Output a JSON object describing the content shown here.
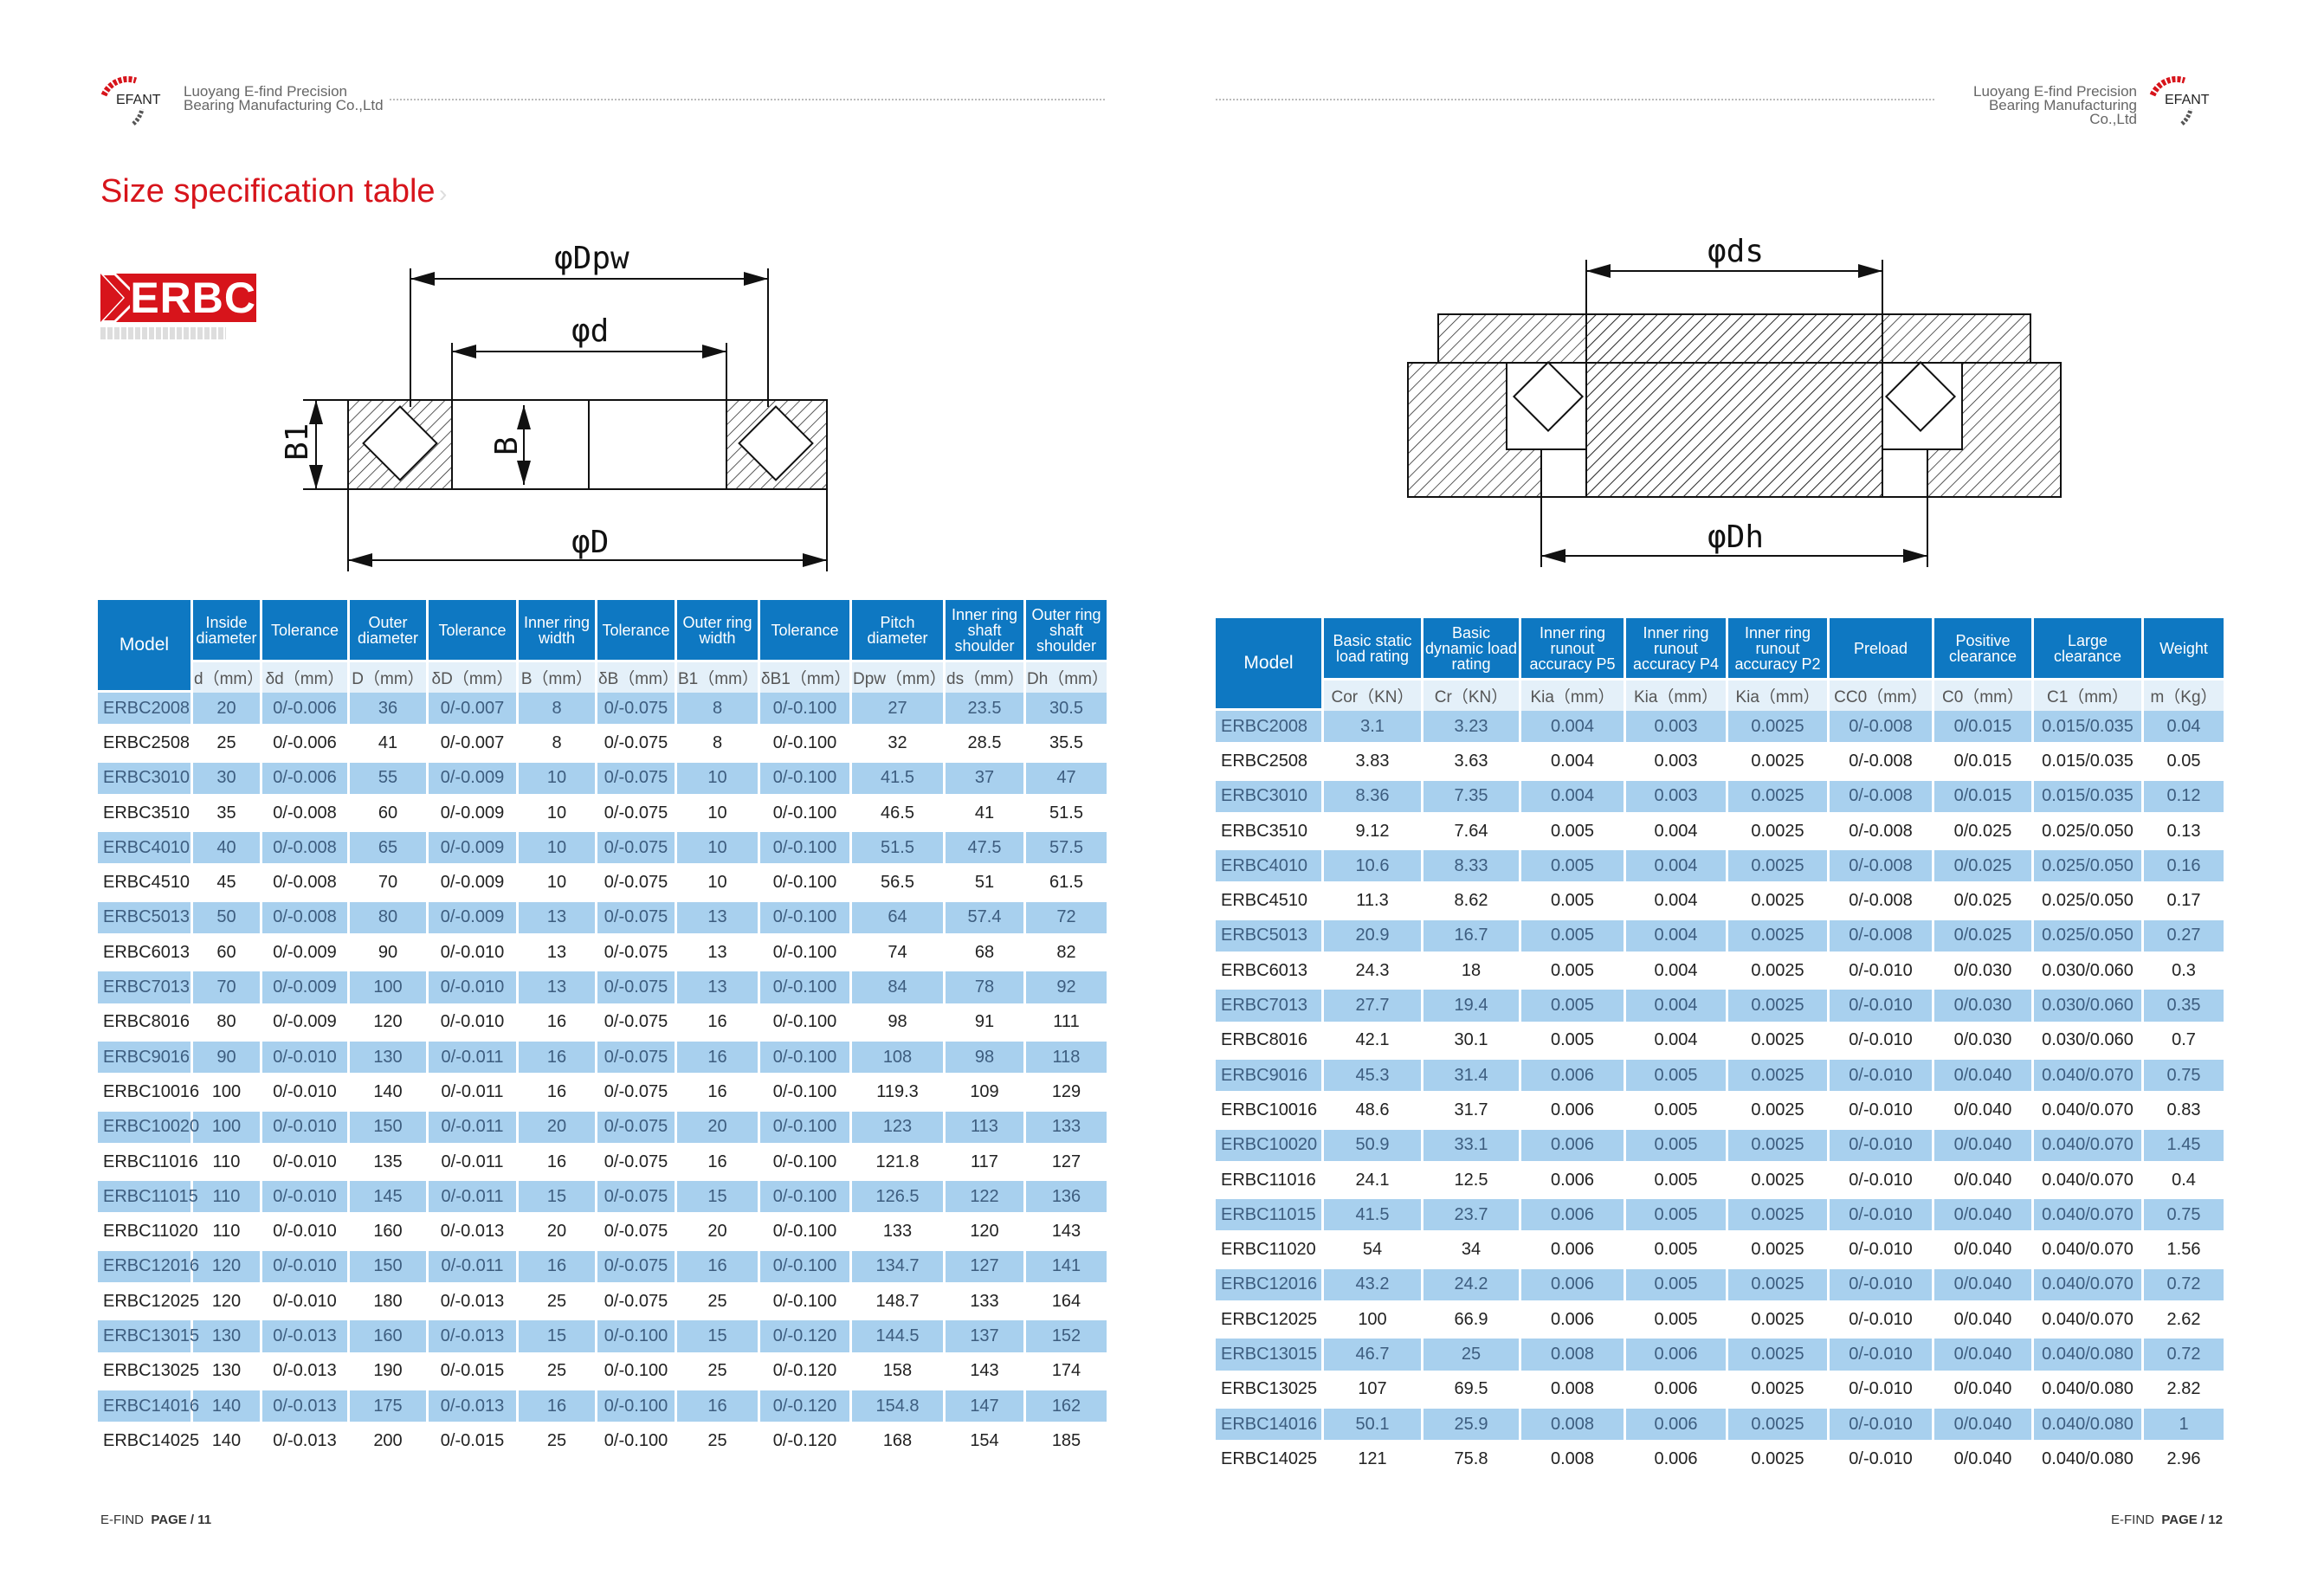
{
  "header": {
    "company_line1": "Luoyang E-find Precision",
    "company_line2": "Bearing Manufacturing Co.,Ltd",
    "logo_text": "EFANT"
  },
  "title": "Size specification table",
  "badge": "ERBC",
  "diagram_left": {
    "dpw": "φDpw",
    "d": "φd",
    "D": "φD",
    "b1": "B1",
    "b": "B"
  },
  "diagram_right": {
    "ds": "φds",
    "dh": "φDh"
  },
  "colors": {
    "header_blue": "#0e78c2",
    "row_highlight": "#a8d0ee",
    "title_red": "#d7141b"
  },
  "left_table": {
    "headers": [
      "Model",
      "Inside diameter",
      "Tolerance",
      "Outer diameter",
      "Tolerance",
      "Inner ring width",
      "Tolerance",
      "Outer ring width",
      "Tolerance",
      "Pitch diameter",
      "Inner ring shaft shoulder",
      "Outer ring shaft shoulder"
    ],
    "units": [
      "d（mm）",
      "δd（mm）",
      "D（mm）",
      "δD（mm）",
      "B（mm）",
      "δB（mm）",
      "B1（mm）",
      "δB1（mm）",
      "Dpw（mm）",
      "ds（mm）",
      "Dh（mm）"
    ],
    "rows": [
      [
        "ERBC2008",
        "20",
        "0/-0.006",
        "36",
        "0/-0.007",
        "8",
        "0/-0.075",
        "8",
        "0/-0.100",
        "27",
        "23.5",
        "30.5"
      ],
      [
        "ERBC2508",
        "25",
        "0/-0.006",
        "41",
        "0/-0.007",
        "8",
        "0/-0.075",
        "8",
        "0/-0.100",
        "32",
        "28.5",
        "35.5"
      ],
      [
        "ERBC3010",
        "30",
        "0/-0.006",
        "55",
        "0/-0.009",
        "10",
        "0/-0.075",
        "10",
        "0/-0.100",
        "41.5",
        "37",
        "47"
      ],
      [
        "ERBC3510",
        "35",
        "0/-0.008",
        "60",
        "0/-0.009",
        "10",
        "0/-0.075",
        "10",
        "0/-0.100",
        "46.5",
        "41",
        "51.5"
      ],
      [
        "ERBC4010",
        "40",
        "0/-0.008",
        "65",
        "0/-0.009",
        "10",
        "0/-0.075",
        "10",
        "0/-0.100",
        "51.5",
        "47.5",
        "57.5"
      ],
      [
        "ERBC4510",
        "45",
        "0/-0.008",
        "70",
        "0/-0.009",
        "10",
        "0/-0.075",
        "10",
        "0/-0.100",
        "56.5",
        "51",
        "61.5"
      ],
      [
        "ERBC5013",
        "50",
        "0/-0.008",
        "80",
        "0/-0.009",
        "13",
        "0/-0.075",
        "13",
        "0/-0.100",
        "64",
        "57.4",
        "72"
      ],
      [
        "ERBC6013",
        "60",
        "0/-0.009",
        "90",
        "0/-0.010",
        "13",
        "0/-0.075",
        "13",
        "0/-0.100",
        "74",
        "68",
        "82"
      ],
      [
        "ERBC7013",
        "70",
        "0/-0.009",
        "100",
        "0/-0.010",
        "13",
        "0/-0.075",
        "13",
        "0/-0.100",
        "84",
        "78",
        "92"
      ],
      [
        "ERBC8016",
        "80",
        "0/-0.009",
        "120",
        "0/-0.010",
        "16",
        "0/-0.075",
        "16",
        "0/-0.100",
        "98",
        "91",
        "111"
      ],
      [
        "ERBC9016",
        "90",
        "0/-0.010",
        "130",
        "0/-0.011",
        "16",
        "0/-0.075",
        "16",
        "0/-0.100",
        "108",
        "98",
        "118"
      ],
      [
        "ERBC10016",
        "100",
        "0/-0.010",
        "140",
        "0/-0.011",
        "16",
        "0/-0.075",
        "16",
        "0/-0.100",
        "119.3",
        "109",
        "129"
      ],
      [
        "ERBC10020",
        "100",
        "0/-0.010",
        "150",
        "0/-0.011",
        "20",
        "0/-0.075",
        "20",
        "0/-0.100",
        "123",
        "113",
        "133"
      ],
      [
        "ERBC11016",
        "110",
        "0/-0.010",
        "135",
        "0/-0.011",
        "16",
        "0/-0.075",
        "16",
        "0/-0.100",
        "121.8",
        "117",
        "127"
      ],
      [
        "ERBC11015",
        "110",
        "0/-0.010",
        "145",
        "0/-0.011",
        "15",
        "0/-0.075",
        "15",
        "0/-0.100",
        "126.5",
        "122",
        "136"
      ],
      [
        "ERBC11020",
        "110",
        "0/-0.010",
        "160",
        "0/-0.013",
        "20",
        "0/-0.075",
        "20",
        "0/-0.100",
        "133",
        "120",
        "143"
      ],
      [
        "ERBC12016",
        "120",
        "0/-0.010",
        "150",
        "0/-0.011",
        "16",
        "0/-0.075",
        "16",
        "0/-0.100",
        "134.7",
        "127",
        "141"
      ],
      [
        "ERBC12025",
        "120",
        "0/-0.010",
        "180",
        "0/-0.013",
        "25",
        "0/-0.075",
        "25",
        "0/-0.100",
        "148.7",
        "133",
        "164"
      ],
      [
        "ERBC13015",
        "130",
        "0/-0.013",
        "160",
        "0/-0.013",
        "15",
        "0/-0.100",
        "15",
        "0/-0.120",
        "144.5",
        "137",
        "152"
      ],
      [
        "ERBC13025",
        "130",
        "0/-0.013",
        "190",
        "0/-0.015",
        "25",
        "0/-0.100",
        "25",
        "0/-0.120",
        "158",
        "143",
        "174"
      ],
      [
        "ERBC14016",
        "140",
        "0/-0.013",
        "175",
        "0/-0.013",
        "16",
        "0/-0.100",
        "16",
        "0/-0.120",
        "154.8",
        "147",
        "162"
      ],
      [
        "ERBC14025",
        "140",
        "0/-0.013",
        "200",
        "0/-0.015",
        "25",
        "0/-0.100",
        "25",
        "0/-0.120",
        "168",
        "154",
        "185"
      ]
    ]
  },
  "right_table": {
    "headers": [
      "Model",
      "Basic static load rating",
      "Basic dynamic load rating",
      "Inner ring runout accuracy P5",
      "Inner ring runout accuracy P4",
      "Inner ring runout accuracy P2",
      "Preload",
      "Positive clearance",
      "Large clearance",
      "Weight"
    ],
    "units": [
      "Cor（KN）",
      "Cr（KN）",
      "Kia（mm）",
      "Kia（mm）",
      "Kia（mm）",
      "CC0（mm）",
      "C0（mm）",
      "C1（mm）",
      "m（Kg）"
    ],
    "rows": [
      [
        "ERBC2008",
        "3.1",
        "3.23",
        "0.004",
        "0.003",
        "0.0025",
        "0/-0.008",
        "0/0.015",
        "0.015/0.035",
        "0.04"
      ],
      [
        "ERBC2508",
        "3.83",
        "3.63",
        "0.004",
        "0.003",
        "0.0025",
        "0/-0.008",
        "0/0.015",
        "0.015/0.035",
        "0.05"
      ],
      [
        "ERBC3010",
        "8.36",
        "7.35",
        "0.004",
        "0.003",
        "0.0025",
        "0/-0.008",
        "0/0.015",
        "0.015/0.035",
        "0.12"
      ],
      [
        "ERBC3510",
        "9.12",
        "7.64",
        "0.005",
        "0.004",
        "0.0025",
        "0/-0.008",
        "0/0.025",
        "0.025/0.050",
        "0.13"
      ],
      [
        "ERBC4010",
        "10.6",
        "8.33",
        "0.005",
        "0.004",
        "0.0025",
        "0/-0.008",
        "0/0.025",
        "0.025/0.050",
        "0.16"
      ],
      [
        "ERBC4510",
        "11.3",
        "8.62",
        "0.005",
        "0.004",
        "0.0025",
        "0/-0.008",
        "0/0.025",
        "0.025/0.050",
        "0.17"
      ],
      [
        "ERBC5013",
        "20.9",
        "16.7",
        "0.005",
        "0.004",
        "0.0025",
        "0/-0.008",
        "0/0.025",
        "0.025/0.050",
        "0.27"
      ],
      [
        "ERBC6013",
        "24.3",
        "18",
        "0.005",
        "0.004",
        "0.0025",
        "0/-0.010",
        "0/0.030",
        "0.030/0.060",
        "0.3"
      ],
      [
        "ERBC7013",
        "27.7",
        "19.4",
        "0.005",
        "0.004",
        "0.0025",
        "0/-0.010",
        "0/0.030",
        "0.030/0.060",
        "0.35"
      ],
      [
        "ERBC8016",
        "42.1",
        "30.1",
        "0.005",
        "0.004",
        "0.0025",
        "0/-0.010",
        "0/0.030",
        "0.030/0.060",
        "0.7"
      ],
      [
        "ERBC9016",
        "45.3",
        "31.4",
        "0.006",
        "0.005",
        "0.0025",
        "0/-0.010",
        "0/0.040",
        "0.040/0.070",
        "0.75"
      ],
      [
        "ERBC10016",
        "48.6",
        "31.7",
        "0.006",
        "0.005",
        "0.0025",
        "0/-0.010",
        "0/0.040",
        "0.040/0.070",
        "0.83"
      ],
      [
        "ERBC10020",
        "50.9",
        "33.1",
        "0.006",
        "0.005",
        "0.0025",
        "0/-0.010",
        "0/0.040",
        "0.040/0.070",
        "1.45"
      ],
      [
        "ERBC11016",
        "24.1",
        "12.5",
        "0.006",
        "0.005",
        "0.0025",
        "0/-0.010",
        "0/0.040",
        "0.040/0.070",
        "0.4"
      ],
      [
        "ERBC11015",
        "41.5",
        "23.7",
        "0.006",
        "0.005",
        "0.0025",
        "0/-0.010",
        "0/0.040",
        "0.040/0.070",
        "0.75"
      ],
      [
        "ERBC11020",
        "54",
        "34",
        "0.006",
        "0.005",
        "0.0025",
        "0/-0.010",
        "0/0.040",
        "0.040/0.070",
        "1.56"
      ],
      [
        "ERBC12016",
        "43.2",
        "24.2",
        "0.006",
        "0.005",
        "0.0025",
        "0/-0.010",
        "0/0.040",
        "0.040/0.070",
        "0.72"
      ],
      [
        "ERBC12025",
        "100",
        "66.9",
        "0.006",
        "0.005",
        "0.0025",
        "0/-0.010",
        "0/0.040",
        "0.040/0.070",
        "2.62"
      ],
      [
        "ERBC13015",
        "46.7",
        "25",
        "0.008",
        "0.006",
        "0.0025",
        "0/-0.010",
        "0/0.040",
        "0.040/0.080",
        "0.72"
      ],
      [
        "ERBC13025",
        "107",
        "69.5",
        "0.008",
        "0.006",
        "0.0025",
        "0/-0.010",
        "0/0.040",
        "0.040/0.080",
        "2.82"
      ],
      [
        "ERBC14016",
        "50.1",
        "25.9",
        "0.008",
        "0.006",
        "0.0025",
        "0/-0.010",
        "0/0.040",
        "0.040/0.080",
        "1"
      ],
      [
        "ERBC14025",
        "121",
        "75.8",
        "0.008",
        "0.006",
        "0.0025",
        "0/-0.010",
        "0/0.040",
        "0.040/0.080",
        "2.96"
      ]
    ]
  },
  "footer": {
    "brand": "E-FIND",
    "left_page": "PAGE / 11",
    "right_page": "PAGE / 12"
  }
}
